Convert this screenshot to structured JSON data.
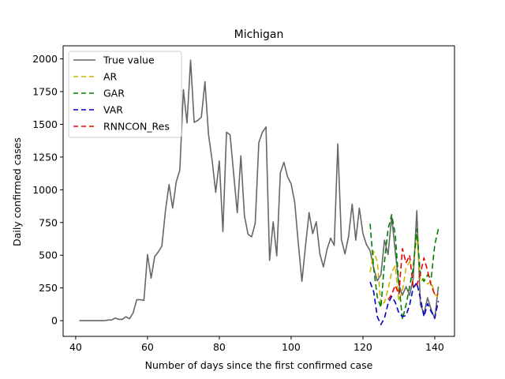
{
  "chart_data": {
    "type": "line",
    "title": "Michigan",
    "xlabel": "Number of days since the first confirmed case",
    "ylabel": "Daily confirmed cases",
    "xlim": [
      36.5,
      145.5
    ],
    "ylim": [
      -120,
      2100
    ],
    "xticks": [
      40,
      60,
      80,
      100,
      120,
      140
    ],
    "yticks": [
      0,
      250,
      500,
      750,
      1000,
      1250,
      1500,
      1750,
      2000
    ],
    "grid": false,
    "legend_position": "top-left",
    "series": [
      {
        "name": "True value",
        "color": "#666666",
        "dash": "solid",
        "x": [
          41,
          42,
          43,
          44,
          45,
          46,
          47,
          48,
          49,
          50,
          51,
          52,
          53,
          54,
          55,
          56,
          57,
          58,
          59,
          60,
          61,
          62,
          63,
          64,
          65,
          66,
          67,
          68,
          69,
          70,
          71,
          72,
          73,
          74,
          75,
          76,
          77,
          78,
          79,
          80,
          81,
          82,
          83,
          84,
          85,
          86,
          87,
          88,
          89,
          90,
          91,
          92,
          93,
          94,
          95,
          96,
          97,
          98,
          99,
          100,
          101,
          102,
          103,
          104,
          105,
          106,
          107,
          108,
          109,
          110,
          111,
          112,
          113,
          114,
          115,
          116,
          117,
          118,
          119,
          120,
          121,
          122,
          123,
          124,
          125,
          126,
          127,
          128,
          129,
          130,
          131,
          132,
          133,
          134,
          135,
          136,
          137,
          138,
          139,
          140,
          141
        ],
        "y": [
          0,
          0,
          0,
          0,
          0,
          0,
          0,
          0,
          5,
          5,
          20,
          10,
          10,
          30,
          15,
          60,
          160,
          160,
          155,
          505,
          325,
          490,
          525,
          570,
          840,
          1040,
          860,
          1060,
          1150,
          1765,
          1510,
          1990,
          1515,
          1530,
          1555,
          1825,
          1420,
          1225,
          980,
          1220,
          680,
          1440,
          1420,
          1120,
          825,
          1260,
          800,
          660,
          640,
          745,
          1360,
          1440,
          1480,
          460,
          755,
          495,
          1130,
          1210,
          1100,
          1045,
          905,
          590,
          300,
          570,
          825,
          665,
          755,
          510,
          410,
          545,
          630,
          575,
          1350,
          620,
          510,
          645,
          890,
          615,
          860,
          665,
          580,
          535,
          400,
          305,
          350,
          615,
          505,
          795,
          530,
          275,
          195,
          260,
          195,
          320,
          840,
          120,
          55,
          175,
          85,
          15,
          260
        ]
      },
      {
        "name": "AR",
        "color": "#c8b400",
        "dash": "7,4",
        "x": [
          122,
          123,
          124,
          125,
          126,
          127,
          128,
          129,
          130,
          131,
          132,
          133,
          134,
          135,
          136,
          137,
          138,
          139,
          140,
          141
        ],
        "y": [
          370,
          530,
          450,
          120,
          140,
          240,
          370,
          420,
          150,
          230,
          400,
          450,
          420,
          650,
          300,
          320,
          280,
          300,
          200,
          180
        ]
      },
      {
        "name": "GAR",
        "color": "#008000",
        "dash": "7,4",
        "x": [
          122,
          123,
          124,
          125,
          126,
          127,
          128,
          129,
          130,
          131,
          132,
          133,
          134,
          135,
          136,
          137,
          138,
          139,
          140,
          141
        ],
        "y": [
          740,
          400,
          180,
          100,
          450,
          700,
          810,
          660,
          280,
          10,
          120,
          260,
          400,
          700,
          350,
          300,
          350,
          320,
          580,
          700
        ]
      },
      {
        "name": "VAR",
        "color": "#0000cc",
        "dash": "7,4",
        "x": [
          122,
          123,
          124,
          125,
          126,
          127,
          128,
          129,
          130,
          131,
          132,
          133,
          134,
          135,
          136,
          137,
          138,
          139,
          140,
          141
        ],
        "y": [
          295,
          220,
          30,
          -30,
          20,
          130,
          185,
          140,
          60,
          30,
          40,
          120,
          250,
          290,
          170,
          30,
          130,
          70,
          20,
          150
        ]
      },
      {
        "name": "RNNCON_Res",
        "color": "#ee0000",
        "dash": "7,4",
        "x": [
          127,
          128,
          129,
          130,
          131,
          132,
          133,
          134,
          135,
          136,
          137,
          138,
          139,
          140,
          141
        ],
        "y": [
          160,
          200,
          270,
          200,
          550,
          440,
          500,
          260,
          270,
          360,
          480,
          380,
          270,
          200,
          200
        ]
      }
    ]
  }
}
